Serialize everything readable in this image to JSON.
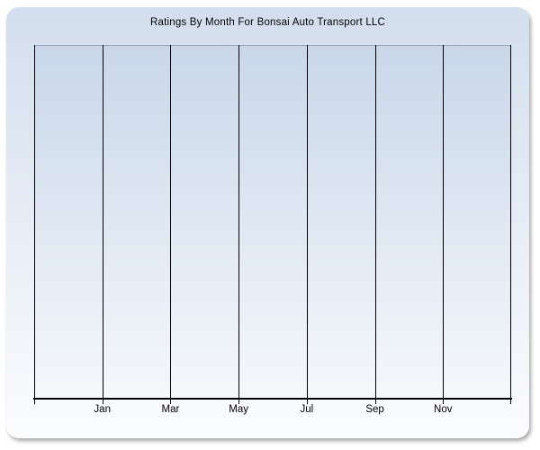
{
  "chart": {
    "title": "Ratings By Month For Bonsai Auto Transport LLC",
    "x_tick_labels": [
      "Jan",
      "Mar",
      "May",
      "Jul",
      "Sep",
      "Nov"
    ]
  },
  "chart_data": {
    "type": "bar",
    "title": "Ratings By Month For Bonsai Auto Transport LLC",
    "categories": [
      "Jan",
      "Mar",
      "May",
      "Jul",
      "Sep",
      "Nov"
    ],
    "series": [],
    "values": [],
    "xlabel": "",
    "ylabel": "",
    "legend": "none",
    "grid": "vertical-gridlines-only",
    "vertical_gridline_count": 8,
    "labeled_gridlines": "interior six of eight, every second month",
    "plot_is_empty": true
  },
  "colors": {
    "panel_gradient_top": "#d3deee",
    "panel_gradient_bottom": "#fbfcfe",
    "plot_gradient_top": "#c9d7ea",
    "plot_gradient_bottom": "#f5f8fb",
    "gridline_color": "#000000",
    "axis_color": "#000000",
    "plot_top_border_color": "#9aa5bb",
    "text_color": "#000000"
  }
}
